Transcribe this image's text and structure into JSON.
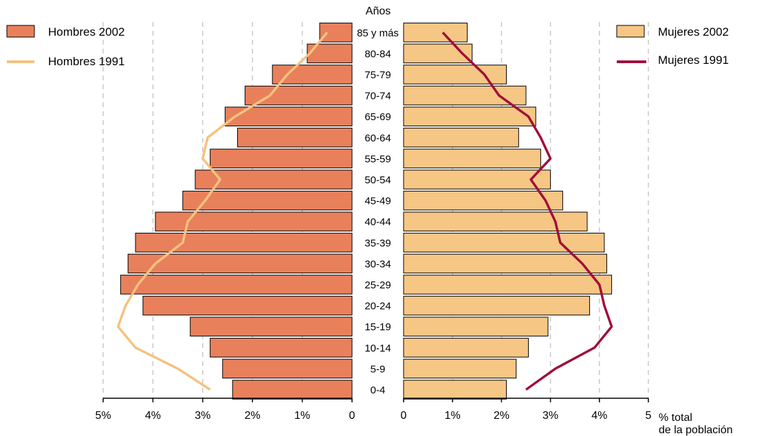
{
  "chart_data": {
    "type": "bar",
    "subtype": "population-pyramid",
    "center_label": "Años",
    "xlabel_lines": [
      "% total",
      "de la población"
    ],
    "categories": [
      "85 y más",
      "80-84",
      "75-79",
      "70-74",
      "65-69",
      "60-64",
      "55-59",
      "50-54",
      "45-49",
      "40-44",
      "35-39",
      "30-34",
      "25-29",
      "20-24",
      "15-19",
      "10-14",
      "5-9",
      "0-4"
    ],
    "left_ticks": [
      "5%",
      "4%",
      "3%",
      "2%",
      "1%",
      "0"
    ],
    "right_ticks": [
      "0",
      "1%",
      "2%",
      "3%",
      "4%",
      "5"
    ],
    "xlim": [
      0,
      5
    ],
    "grid": "vertical dashed",
    "series": [
      {
        "name": "Hombres 2002",
        "kind": "bar",
        "side": "left",
        "color": "#e8805c",
        "values": [
          0.65,
          0.9,
          1.6,
          2.15,
          2.55,
          2.3,
          2.85,
          3.15,
          3.4,
          3.95,
          4.35,
          4.5,
          4.65,
          4.2,
          3.25,
          2.85,
          2.6,
          2.4
        ]
      },
      {
        "name": "Mujeres 2002",
        "kind": "bar",
        "side": "right",
        "color": "#f6c684",
        "values": [
          1.3,
          1.4,
          2.1,
          2.5,
          2.7,
          2.35,
          2.8,
          3.0,
          3.25,
          3.75,
          4.1,
          4.15,
          4.25,
          3.8,
          2.95,
          2.55,
          2.3,
          2.1
        ]
      },
      {
        "name": "Hombres 1991",
        "kind": "line",
        "side": "left",
        "color": "#f5c27f",
        "values": [
          0.5,
          0.85,
          1.3,
          1.65,
          2.35,
          2.9,
          3.0,
          2.65,
          2.95,
          3.3,
          3.4,
          3.95,
          4.3,
          4.55,
          4.7,
          4.35,
          3.5,
          2.85
        ]
      },
      {
        "name": "Mujeres 1991",
        "kind": "line",
        "side": "right",
        "color": "#a0103a",
        "values": [
          0.8,
          1.2,
          1.65,
          1.95,
          2.55,
          2.8,
          3.0,
          2.6,
          2.9,
          3.1,
          3.2,
          3.65,
          4.0,
          4.1,
          4.25,
          3.9,
          3.1,
          2.5
        ]
      }
    ]
  }
}
